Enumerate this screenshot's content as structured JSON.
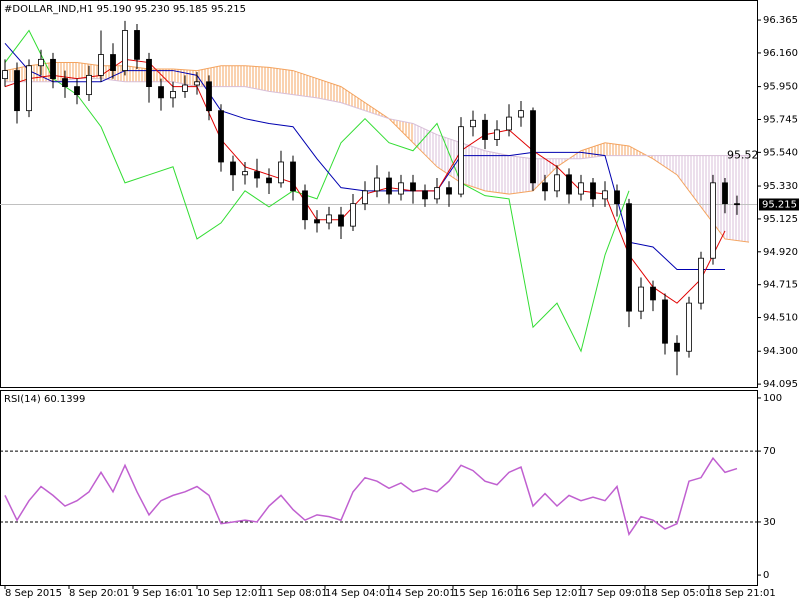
{
  "chart_data": [
    {
      "type": "candlestick",
      "title": "#DOLLAR_IND,H1  95.190 95.230 95.185 95.215",
      "xlim": [
        -1.25,
        188
      ],
      "ylim": [
        94.077,
        96.49
      ],
      "yticks": [
        96.365,
        {
          "value": 96.16,
          "label": "96.160"
        },
        {
          "value": 95.95,
          "label": "95.950"
        },
        95.745,
        {
          "value": 95.54,
          "label": "95.540"
        },
        {
          "value": 95.33,
          "label": "95.330"
        },
        95.125,
        {
          "value": 94.92,
          "label": "94.920"
        },
        94.715,
        {
          "value": 94.51,
          "label": "94.510"
        },
        {
          "value": 94.3,
          "label": "94.300"
        },
        94.095
      ],
      "last_price": 95.215,
      "cloud_label": 95.52,
      "x": [
        0,
        3,
        6,
        9,
        12,
        15,
        18,
        21,
        24,
        27,
        30,
        33,
        36,
        39,
        42,
        45,
        48,
        51,
        54,
        57,
        60,
        63,
        66,
        69,
        72,
        75,
        78,
        81,
        84,
        87,
        90,
        93,
        96,
        99,
        102,
        105,
        108,
        111,
        114,
        117,
        120,
        123,
        126,
        129,
        132,
        135,
        138,
        141,
        144,
        147,
        150,
        153,
        156,
        159,
        162,
        165,
        168,
        171,
        174,
        177,
        180,
        183
      ],
      "open": [
        96.0,
        96.05,
        95.8,
        96.08,
        96.12,
        96.0,
        95.95,
        95.9,
        96.02,
        96.15,
        96.05,
        96.3,
        96.12,
        95.95,
        95.88,
        95.92,
        95.96,
        95.98,
        95.8,
        95.48,
        95.4,
        95.42,
        95.38,
        95.35,
        95.48,
        95.3,
        95.12,
        95.1,
        95.15,
        95.08,
        95.22,
        95.3,
        95.38,
        95.28,
        95.35,
        95.3,
        95.25,
        95.32,
        95.28,
        95.7,
        95.74,
        95.62,
        95.68,
        95.76,
        95.8,
        95.35,
        95.3,
        95.4,
        95.28,
        95.35,
        95.25,
        95.3,
        95.22,
        94.55,
        94.7,
        94.62,
        94.35,
        94.3,
        94.6,
        94.88,
        95.35,
        95.22
      ],
      "high": [
        96.12,
        96.1,
        96.12,
        96.18,
        96.16,
        96.05,
        96.0,
        96.08,
        96.3,
        96.22,
        96.36,
        96.34,
        96.16,
        96.0,
        95.98,
        96.02,
        96.04,
        96.02,
        95.84,
        95.52,
        95.48,
        95.5,
        95.44,
        95.55,
        95.52,
        95.34,
        95.18,
        95.2,
        95.2,
        95.28,
        95.36,
        95.46,
        95.42,
        95.4,
        95.4,
        95.34,
        95.38,
        95.36,
        95.76,
        95.8,
        95.78,
        95.74,
        95.84,
        95.86,
        95.82,
        95.4,
        95.46,
        95.44,
        95.4,
        95.38,
        95.36,
        95.34,
        95.25,
        94.76,
        94.74,
        94.66,
        94.4,
        94.64,
        94.92,
        95.4,
        95.38,
        95.27
      ],
      "low": [
        95.95,
        95.72,
        95.76,
        96.02,
        95.94,
        95.88,
        95.84,
        95.86,
        95.98,
        96.0,
        96.02,
        96.06,
        95.85,
        95.8,
        95.82,
        95.88,
        95.9,
        95.74,
        95.42,
        95.3,
        95.34,
        95.32,
        95.28,
        95.32,
        95.24,
        95.06,
        95.04,
        95.06,
        95.0,
        95.05,
        95.18,
        95.26,
        95.22,
        95.24,
        95.22,
        95.2,
        95.22,
        95.2,
        95.26,
        95.64,
        95.56,
        95.58,
        95.64,
        95.7,
        95.3,
        95.24,
        95.26,
        95.22,
        95.24,
        95.2,
        95.2,
        95.14,
        94.45,
        94.5,
        94.55,
        94.28,
        94.15,
        94.26,
        94.56,
        94.84,
        95.16,
        95.15
      ],
      "close": [
        96.05,
        95.8,
        96.08,
        96.12,
        96.0,
        95.95,
        95.9,
        96.02,
        96.15,
        96.05,
        96.3,
        96.12,
        95.95,
        95.88,
        95.92,
        95.96,
        95.98,
        95.8,
        95.48,
        95.4,
        95.42,
        95.38,
        95.35,
        95.48,
        95.3,
        95.12,
        95.1,
        95.15,
        95.08,
        95.22,
        95.3,
        95.38,
        95.28,
        95.35,
        95.3,
        95.25,
        95.32,
        95.28,
        95.7,
        95.74,
        95.62,
        95.68,
        95.76,
        95.8,
        95.35,
        95.3,
        95.4,
        95.28,
        95.35,
        95.25,
        95.3,
        95.22,
        94.55,
        94.7,
        94.62,
        94.35,
        94.3,
        94.6,
        94.88,
        95.35,
        95.22,
        95.215
      ],
      "tenkan": {
        "color": "#e00000",
        "x": [
          0,
          6,
          12,
          18,
          24,
          30,
          36,
          42,
          48,
          54,
          60,
          66,
          72,
          78,
          84,
          90,
          96,
          102,
          108,
          114,
          120,
          126,
          132,
          138,
          144,
          150,
          156,
          162,
          168,
          174,
          180
        ],
        "values": [
          95.95,
          96.0,
          96.02,
          96.0,
          96.02,
          96.12,
          96.1,
          95.95,
          95.95,
          95.62,
          95.45,
          95.4,
          95.35,
          95.12,
          95.12,
          95.28,
          95.32,
          95.3,
          95.3,
          95.55,
          95.65,
          95.68,
          95.55,
          95.45,
          95.3,
          95.28,
          94.9,
          94.7,
          94.6,
          94.75,
          95.05
        ]
      },
      "kijun": {
        "color": "#0000b0",
        "x": [
          0,
          6,
          12,
          18,
          24,
          30,
          36,
          42,
          48,
          54,
          60,
          66,
          72,
          78,
          84,
          90,
          96,
          102,
          108,
          114,
          120,
          126,
          132,
          138,
          144,
          150,
          156,
          162,
          168,
          174,
          180
        ],
        "values": [
          96.22,
          96.05,
          95.98,
          95.98,
          95.98,
          96.05,
          96.05,
          96.05,
          96.02,
          95.8,
          95.75,
          95.72,
          95.7,
          95.5,
          95.32,
          95.3,
          95.3,
          95.3,
          95.3,
          95.52,
          95.52,
          95.52,
          95.54,
          95.54,
          95.54,
          95.52,
          94.98,
          94.95,
          94.81,
          94.81,
          94.81
        ]
      },
      "chikou": {
        "color": "#33dd33",
        "x": [
          0,
          6,
          12,
          18,
          24,
          30,
          36,
          42,
          48,
          54,
          60,
          66,
          72,
          78,
          84,
          90,
          96,
          102,
          108,
          114,
          120,
          126,
          132,
          138,
          144,
          150,
          156
        ],
        "values": [
          96.1,
          96.3,
          96.0,
          95.9,
          95.7,
          95.35,
          95.4,
          95.45,
          95.0,
          95.1,
          95.3,
          95.2,
          95.3,
          95.25,
          95.6,
          95.75,
          95.6,
          95.55,
          95.72,
          95.35,
          95.27,
          95.25,
          94.45,
          94.6,
          94.3,
          94.9,
          95.3
        ]
      },
      "span_a": {
        "color": "#f4a460",
        "x": [
          0,
          6,
          12,
          18,
          24,
          30,
          36,
          42,
          48,
          54,
          60,
          66,
          72,
          78,
          84,
          90,
          96,
          102,
          108,
          114,
          120,
          126,
          132,
          138,
          144,
          150,
          156,
          162,
          168,
          174,
          180,
          186
        ],
        "values": [
          96.05,
          96.08,
          96.1,
          96.1,
          96.08,
          96.08,
          96.06,
          96.06,
          96.05,
          96.08,
          96.08,
          96.07,
          96.05,
          96.0,
          95.95,
          95.85,
          95.75,
          95.6,
          95.45,
          95.35,
          95.3,
          95.28,
          95.3,
          95.45,
          95.55,
          95.6,
          95.58,
          95.5,
          95.4,
          95.2,
          95.0,
          94.98
        ]
      },
      "span_b": {
        "color": "#d8bfd8",
        "x": [
          0,
          6,
          12,
          18,
          24,
          30,
          36,
          42,
          48,
          54,
          60,
          66,
          72,
          78,
          84,
          90,
          96,
          102,
          108,
          114,
          120,
          126,
          132,
          138,
          144,
          150,
          156,
          162,
          168,
          174,
          180,
          186
        ],
        "values": [
          95.98,
          95.98,
          95.98,
          96.0,
          96.0,
          95.98,
          95.98,
          95.98,
          95.95,
          95.95,
          95.95,
          95.92,
          95.9,
          95.88,
          95.85,
          95.8,
          95.75,
          95.72,
          95.65,
          95.6,
          95.55,
          95.52,
          95.5,
          95.5,
          95.5,
          95.52,
          95.52,
          95.52,
          95.52,
          95.52,
          95.52,
          95.52
        ]
      }
    },
    {
      "type": "line",
      "title": "RSI(14) 60.1399",
      "color": "#c060d0",
      "xlim": [
        -1.25,
        188
      ],
      "ylim": [
        -5.6,
        104.5
      ],
      "yticks": [
        0,
        30,
        70,
        100
      ],
      "levels": [
        30,
        70
      ],
      "xticks": [
        {
          "value": 0,
          "label": "8 Sep 2015"
        },
        {
          "value": 16,
          "label": "8 Sep 20:01"
        },
        {
          "value": 32,
          "label": "9 Sep 16:01"
        },
        {
          "value": 48,
          "label": "10 Sep 12:01"
        },
        {
          "value": 64,
          "label": "11 Sep 08:01"
        },
        {
          "value": 80,
          "label": "14 Sep 04:01"
        },
        {
          "value": 96,
          "label": "14 Sep 20:01"
        },
        {
          "value": 112,
          "label": "15 Sep 16:01"
        },
        {
          "value": 128,
          "label": "16 Sep 12:01"
        },
        {
          "value": 144,
          "label": "17 Sep 09:01"
        },
        {
          "value": 160,
          "label": "18 Sep 05:01"
        },
        {
          "value": 176,
          "label": "18 Sep 21:01"
        }
      ],
      "x": [
        0,
        3,
        6,
        9,
        12,
        15,
        18,
        21,
        24,
        27,
        30,
        33,
        36,
        39,
        42,
        45,
        48,
        51,
        54,
        57,
        60,
        63,
        66,
        69,
        72,
        75,
        78,
        81,
        84,
        87,
        90,
        93,
        96,
        99,
        102,
        105,
        108,
        111,
        114,
        117,
        120,
        123,
        126,
        129,
        132,
        135,
        138,
        141,
        144,
        147,
        150,
        153,
        156,
        159,
        162,
        165,
        168,
        171,
        174,
        177,
        180,
        183
      ],
      "values": [
        45,
        31,
        42,
        50,
        45,
        39,
        42,
        47,
        58,
        47,
        62,
        47,
        34,
        42,
        45,
        47,
        50,
        45,
        29,
        30,
        31,
        30,
        39,
        45,
        37,
        31,
        34,
        33,
        31,
        47,
        55,
        53,
        49,
        52,
        47,
        49,
        47,
        53,
        62,
        59,
        53,
        51,
        58,
        61,
        39,
        46,
        39,
        45,
        42,
        44,
        42,
        50,
        23,
        33,
        31,
        26,
        29,
        53,
        55,
        66,
        58,
        60.1399
      ]
    }
  ]
}
